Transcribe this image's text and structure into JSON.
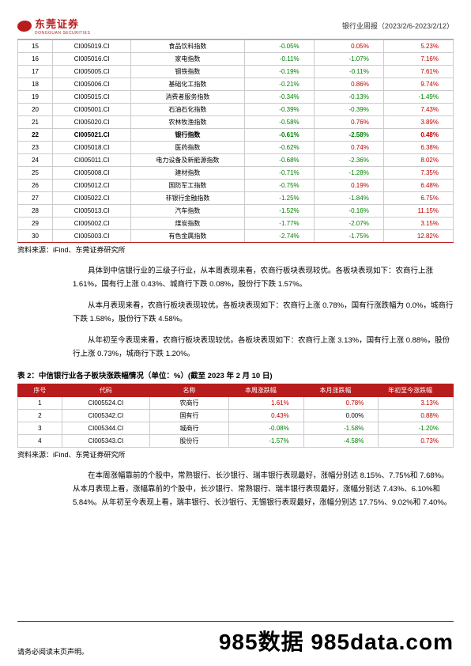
{
  "header": {
    "logo_cn": "东莞证券",
    "logo_en": "DONGGUAN SECURITIES",
    "report_title": "银行业周报（2023/2/6-2023/2/12）"
  },
  "table1": {
    "rows": [
      {
        "n": "15",
        "code": "CI005019.CI",
        "name": "食品饮料指数",
        "v1": "-0.05%",
        "c1": "neg",
        "v2": "0.05%",
        "c2": "pos",
        "v3": "5.23%",
        "c3": "pos",
        "bold": false
      },
      {
        "n": "16",
        "code": "CI005016.CI",
        "name": "家电指数",
        "v1": "-0.11%",
        "c1": "neg",
        "v2": "-1.07%",
        "c2": "neg",
        "v3": "7.16%",
        "c3": "pos",
        "bold": false
      },
      {
        "n": "17",
        "code": "CI005005.CI",
        "name": "钢铁指数",
        "v1": "-0.19%",
        "c1": "neg",
        "v2": "-0.11%",
        "c2": "neg",
        "v3": "7.61%",
        "c3": "pos",
        "bold": false
      },
      {
        "n": "18",
        "code": "CI005006.CI",
        "name": "基础化工指数",
        "v1": "-0.21%",
        "c1": "neg",
        "v2": "0.86%",
        "c2": "pos",
        "v3": "9.74%",
        "c3": "pos",
        "bold": false
      },
      {
        "n": "19",
        "code": "CI005015.CI",
        "name": "消费者服务指数",
        "v1": "-0.34%",
        "c1": "neg",
        "v2": "-0.13%",
        "c2": "neg",
        "v3": "-1.49%",
        "c3": "neg",
        "bold": false
      },
      {
        "n": "20",
        "code": "CI005001.CI",
        "name": "石油石化指数",
        "v1": "-0.39%",
        "c1": "neg",
        "v2": "-0.39%",
        "c2": "neg",
        "v3": "7.43%",
        "c3": "pos",
        "bold": false
      },
      {
        "n": "21",
        "code": "CI005020.CI",
        "name": "农林牧渔指数",
        "v1": "-0.58%",
        "c1": "neg",
        "v2": "0.76%",
        "c2": "pos",
        "v3": "3.89%",
        "c3": "pos",
        "bold": false
      },
      {
        "n": "22",
        "code": "CI005021.CI",
        "name": "银行指数",
        "v1": "-0.61%",
        "c1": "neg",
        "v2": "-2.58%",
        "c2": "neg",
        "v3": "0.48%",
        "c3": "pos",
        "bold": true
      },
      {
        "n": "23",
        "code": "CI005018.CI",
        "name": "医药指数",
        "v1": "-0.62%",
        "c1": "neg",
        "v2": "0.74%",
        "c2": "pos",
        "v3": "6.38%",
        "c3": "pos",
        "bold": false
      },
      {
        "n": "24",
        "code": "CI005011.CI",
        "name": "电力设备及新能源指数",
        "v1": "-0.68%",
        "c1": "neg",
        "v2": "-2.36%",
        "c2": "neg",
        "v3": "8.02%",
        "c3": "pos",
        "bold": false
      },
      {
        "n": "25",
        "code": "CI005008.CI",
        "name": "建材指数",
        "v1": "-0.71%",
        "c1": "neg",
        "v2": "-1.28%",
        "c2": "neg",
        "v3": "7.35%",
        "c3": "pos",
        "bold": false
      },
      {
        "n": "26",
        "code": "CI005012.CI",
        "name": "国防军工指数",
        "v1": "-0.75%",
        "c1": "neg",
        "v2": "0.19%",
        "c2": "pos",
        "v3": "6.48%",
        "c3": "pos",
        "bold": false
      },
      {
        "n": "27",
        "code": "CI005022.CI",
        "name": "非银行金融指数",
        "v1": "-1.25%",
        "c1": "neg",
        "v2": "-1.84%",
        "c2": "neg",
        "v3": "6.75%",
        "c3": "pos",
        "bold": false
      },
      {
        "n": "28",
        "code": "CI005013.CI",
        "name": "汽车指数",
        "v1": "-1.52%",
        "c1": "neg",
        "v2": "-0.16%",
        "c2": "neg",
        "v3": "11.15%",
        "c3": "pos",
        "bold": false
      },
      {
        "n": "29",
        "code": "CI005002.CI",
        "name": "煤炭指数",
        "v1": "-1.77%",
        "c1": "neg",
        "v2": "-2.07%",
        "c2": "neg",
        "v3": "3.15%",
        "c3": "pos",
        "bold": false
      },
      {
        "n": "30",
        "code": "CI005003.CI",
        "name": "有色金属指数",
        "v1": "-2.74%",
        "c1": "neg",
        "v2": "-1.75%",
        "c2": "neg",
        "v3": "12.82%",
        "c3": "pos",
        "bold": false
      }
    ]
  },
  "source": "资料来源：iFind、东莞证券研究所",
  "para1": "具体到中信银行业的三级子行业，从本周表现来看，农商行板块表现较优。各板块表现如下：农商行上涨 1.61%，国有行上涨 0.43%、城商行下跌 0.08%，股份行下跌 1.57%。",
  "para2": "从本月表现来看，农商行板块表现较优。各板块表现如下：农商行上涨 0.78%，国有行涨跌幅为 0.0%，城商行下跌 1.58%，股份行下跌 4.58%。",
  "para3": "从年初至今表现来看，农商行板块表现较优。各板块表现如下：农商行上涨 3.13%，国有行上涨 0.88%，股份行上涨 0.73%，城商行下跌 1.20%。",
  "table2": {
    "title": "表 2：中信银行业各子板块涨跌幅情况（单位：%）(截至 2023 年 2 月 10 日)",
    "headers": [
      "序号",
      "代码",
      "名称",
      "本周涨跌幅",
      "本月涨跌幅",
      "年初至今涨跌幅"
    ],
    "rows": [
      {
        "n": "1",
        "code": "CI005524.CI",
        "name": "农商行",
        "v1": "1.61%",
        "c1": "pos",
        "v2": "0.78%",
        "c2": "pos",
        "v3": "3.13%",
        "c3": "pos"
      },
      {
        "n": "2",
        "code": "CI005342.CI",
        "name": "国有行",
        "v1": "0.43%",
        "c1": "pos",
        "v2": "0.00%",
        "c2": "",
        "v3": "0.88%",
        "c3": "pos"
      },
      {
        "n": "3",
        "code": "CI005344.CI",
        "name": "城商行",
        "v1": "-0.08%",
        "c1": "neg",
        "v2": "-1.58%",
        "c2": "neg",
        "v3": "-1.20%",
        "c3": "neg"
      },
      {
        "n": "4",
        "code": "CI005343.CI",
        "name": "股份行",
        "v1": "-1.57%",
        "c1": "neg",
        "v2": "-4.58%",
        "c2": "neg",
        "v3": "0.73%",
        "c3": "pos"
      }
    ]
  },
  "para4": "在本周涨幅靠前的个股中，常熟银行、长沙银行、瑞丰银行表现最好，涨幅分别达 8.15%、7.75%和 7.68%。从本月表现上看，涨幅靠前的个股中，长沙银行、常熟银行、瑞丰银行表现最好，涨幅分别达 7.43%、6.10%和 5.84%。从年初至今表现上看，瑞丰银行、长沙银行、无锡银行表现最好，涨幅分别达 17.75%、9.02%和 7.40%。",
  "footer": {
    "left": "请务必阅读末页声明。",
    "right": "985数据  985data.com"
  }
}
